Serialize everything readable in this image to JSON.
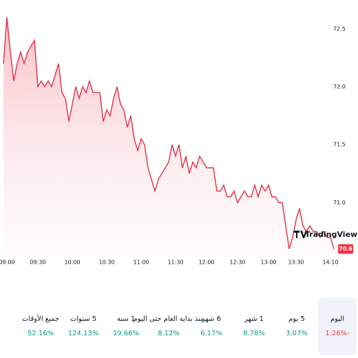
{
  "chart_data": {
    "type": "line",
    "color": "#e03a4e",
    "categories": [
      null,
      "09:00",
      null,
      null,
      null,
      null,
      null,
      null,
      null,
      null,
      "09:30",
      null,
      null,
      null,
      null,
      null,
      null,
      null,
      null,
      null,
      "10:00",
      null,
      null,
      null,
      null,
      null,
      null,
      null,
      null,
      null,
      "10:30",
      null,
      null,
      null,
      null,
      null,
      null,
      null,
      null,
      null,
      "11:00",
      null,
      null,
      null,
      null,
      null,
      null,
      null,
      null,
      null,
      "11:30",
      null,
      null,
      null,
      null,
      null,
      null,
      null,
      null,
      "12:00",
      null,
      null,
      null,
      null,
      null,
      null,
      null,
      null,
      "12:30",
      null,
      null,
      null,
      null,
      null,
      null,
      null,
      null,
      "13:00",
      null,
      null,
      null,
      null,
      null,
      null,
      null,
      "13:30",
      null,
      null,
      null,
      null,
      null,
      null,
      null,
      null,
      null,
      "14:10",
      null
    ],
    "values": [
      72.2,
      72.6,
      72.3,
      72.05,
      72.2,
      72.3,
      72.2,
      72.3,
      72.35,
      72.4,
      72.0,
      72.05,
      72.0,
      72.05,
      72.0,
      72.1,
      72.2,
      71.95,
      71.9,
      71.7,
      71.85,
      72.0,
      71.9,
      72.0,
      71.95,
      72.05,
      71.95,
      71.95,
      71.95,
      71.7,
      71.8,
      71.75,
      71.9,
      72.0,
      71.85,
      71.8,
      71.65,
      71.75,
      71.55,
      71.45,
      71.55,
      71.5,
      71.3,
      71.2,
      71.1,
      71.2,
      71.25,
      71.3,
      71.35,
      71.5,
      71.4,
      71.5,
      71.3,
      71.4,
      71.25,
      71.35,
      71.3,
      71.4,
      71.35,
      71.3,
      71.3,
      71.3,
      71.1,
      71.1,
      71.15,
      71.05,
      71.05,
      71.1,
      71.0,
      71.05,
      71.1,
      71.05,
      71.05,
      71.15,
      71.05,
      71.15,
      71.1,
      71.15,
      71.05,
      71.05,
      71.0,
      71.0,
      70.8,
      70.6,
      70.7,
      70.85,
      70.95,
      70.8,
      70.75,
      70.8,
      70.75,
      70.75,
      70.7,
      70.75,
      70.7,
      70.7,
      70.6
    ],
    "ylim": [
      70.55,
      72.63
    ],
    "yticks": [
      {
        "value": 71,
        "label": "71.0"
      },
      71.5,
      {
        "value": 72,
        "label": "72.0"
      },
      72.5
    ],
    "price_label": {
      "value": 70.6,
      "label": "70.6"
    },
    "logo": "TradingView"
  },
  "periods": [
    {
      "label": "اليوم",
      "change": "1.26%-"
    },
    {
      "label": "5 يوم",
      "change": "3.07%"
    },
    {
      "label": "1 شهر",
      "change": "8.78%"
    },
    {
      "label": "6 شهر",
      "change": "6.17%"
    },
    {
      "label": "منذ بداية العام حتى اليوم",
      "change": "8.12%"
    },
    {
      "label": "1 سنة",
      "change": "19.66%"
    },
    {
      "label": "5 سنوات",
      "change": "124.13%"
    },
    {
      "label": "جميع الأوقات",
      "change": "52.16%"
    }
  ]
}
